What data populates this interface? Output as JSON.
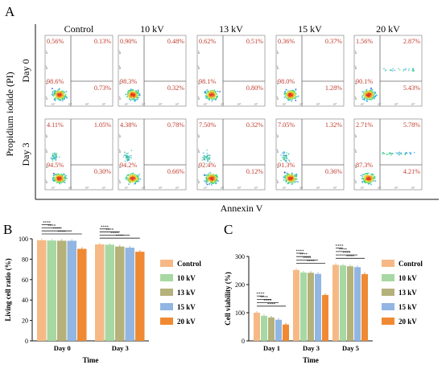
{
  "panelA": {
    "letter": "A",
    "columns": [
      "Control",
      "10 kV",
      "13 kV",
      "15 kV",
      "20 kV"
    ],
    "rows": [
      "Day  0",
      "Day  3"
    ],
    "ylabel": "Propidium iodide (PI)",
    "xlabel": "Annexin V",
    "ticks": [
      "10²",
      "10³",
      "10⁴",
      "10⁵"
    ],
    "quadrants": [
      [
        {
          "ul": "0.56%",
          "ur": "0.13%",
          "ll": "98.6%",
          "lr": "0.73%"
        },
        {
          "ul": "0.90%",
          "ur": "0.48%",
          "ll": "98.3%",
          "lr": "0.32%"
        },
        {
          "ul": "0.62%",
          "ur": "0.51%",
          "ll": "98.1%",
          "lr": "0.80%"
        },
        {
          "ul": "0.36%",
          "ur": "0.37%",
          "ll": "98.0%",
          "lr": "1.28%"
        },
        {
          "ul": "1.56%",
          "ur": "2.87%",
          "ll": "90.1%",
          "lr": "5.43%"
        }
      ],
      [
        {
          "ul": "4.11%",
          "ur": "1.05%",
          "ll": "94.5%",
          "lr": "0.30%"
        },
        {
          "ul": "4.38%",
          "ur": "0.78%",
          "ll": "94.2%",
          "lr": "0.66%"
        },
        {
          "ul": "7.50%",
          "ur": "0.32%",
          "ll": "92.4%",
          "lr": "0.12%"
        },
        {
          "ul": "7.05%",
          "ur": "1.32%",
          "ll": "91.3%",
          "lr": "0.36%"
        },
        {
          "ul": "2.71%",
          "ur": "5.78%",
          "ll": "87.3%",
          "lr": "4.21%"
        }
      ]
    ]
  },
  "chart_data": [
    {
      "panel": "B",
      "type": "bar",
      "xlabel": "Time",
      "ylabel": "Living cell ratio (%)",
      "ylim": [
        0,
        100
      ],
      "yticks": [
        "0",
        "20",
        "40",
        "60",
        "80",
        "100"
      ],
      "categories": [
        "Day 0",
        "Day 3"
      ],
      "series": [
        {
          "name": "Control",
          "values": [
            98.6,
            94.5
          ]
        },
        {
          "name": "10 kV",
          "values": [
            98.3,
            94.2
          ]
        },
        {
          "name": "13 kV",
          "values": [
            98.1,
            92.4
          ]
        },
        {
          "name": "15 kV",
          "values": [
            98.0,
            91.3
          ]
        },
        {
          "name": "20 kV",
          "values": [
            90.1,
            87.3
          ]
        }
      ],
      "significance": "****",
      "legend": "right"
    },
    {
      "panel": "C",
      "type": "bar",
      "xlabel": "Time",
      "ylabel": "Cell viability (%)",
      "ylim": [
        0,
        300
      ],
      "yticks": [
        "0",
        "100",
        "200",
        "300"
      ],
      "categories": [
        "Day 1",
        "Day 3",
        "Day 5"
      ],
      "series": [
        {
          "name": "Control",
          "values": [
            100,
            252,
            270
          ]
        },
        {
          "name": "10 kV",
          "values": [
            89,
            243,
            268
          ]
        },
        {
          "name": "13 kV",
          "values": [
            83,
            242,
            265
          ]
        },
        {
          "name": "15 kV",
          "values": [
            75,
            238,
            262
          ]
        },
        {
          "name": "20 kV",
          "values": [
            58,
            163,
            237
          ]
        }
      ],
      "significance": "****",
      "significance_extra": "***",
      "legend": "right"
    }
  ],
  "colors": {
    "series": [
      "#f6b985",
      "#a7d8a3",
      "#b5b17a",
      "#92b6e3",
      "#ef8a33"
    ],
    "label_red": "#c0392b",
    "sig_line": "#222222"
  }
}
